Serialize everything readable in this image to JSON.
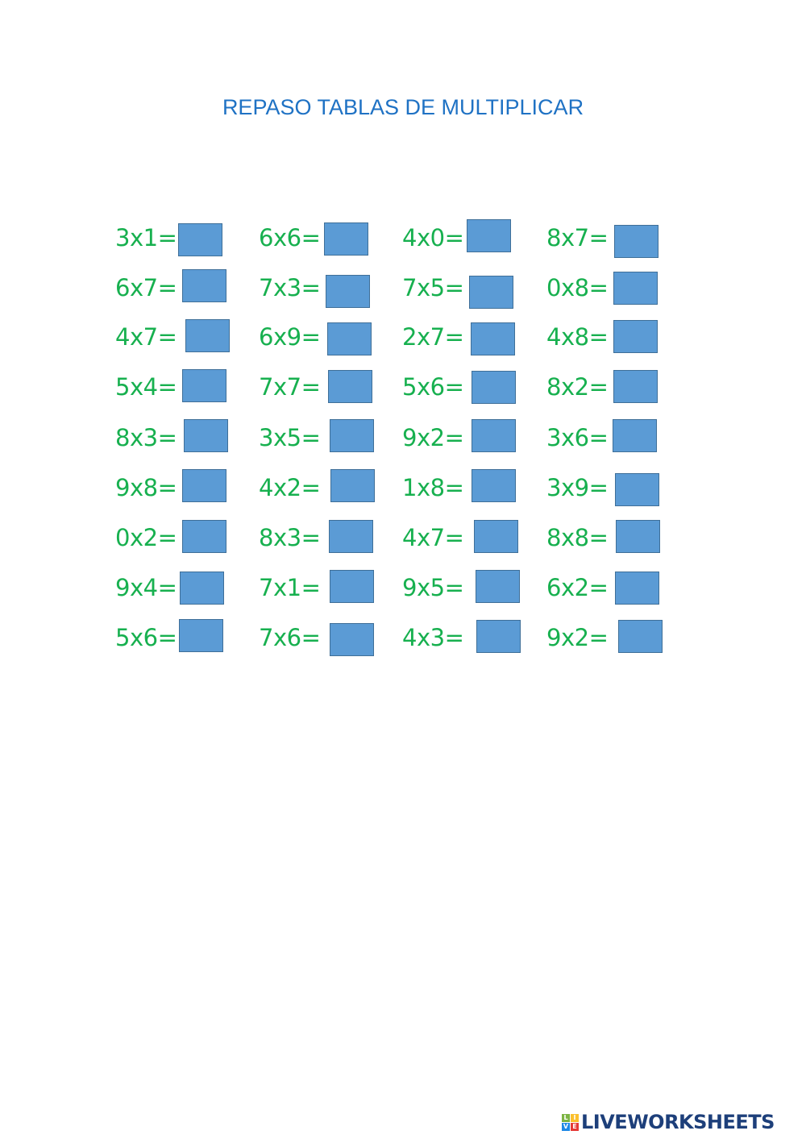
{
  "title": "REPASO TABLAS DE MULTIPLICAR",
  "rows": [
    [
      "3x1=",
      "6x6=",
      "4x0=",
      "8x7="
    ],
    [
      "6x7=",
      "7x3=",
      "7x5=",
      "0x8="
    ],
    [
      "4x7=",
      "6x9=",
      "2x7=",
      "4x8="
    ],
    [
      "5x4=",
      "7x7=",
      "5x6=",
      "8x2="
    ],
    [
      "8x3=",
      "3x5=",
      "9x2=",
      "3x6="
    ],
    [
      "9x8=",
      "4x2=",
      "1x8=",
      "3x9="
    ],
    [
      "0x2=",
      "8x3=",
      "4x7=",
      "8x8="
    ],
    [
      "9x4=",
      "7x1=",
      "9x5=",
      "6x2="
    ],
    [
      "5x6=",
      "7x6=",
      "4x3=",
      "9x2="
    ]
  ],
  "answers": [
    [
      "",
      "",
      "",
      ""
    ],
    [
      "",
      "",
      "",
      ""
    ],
    [
      "",
      "",
      "",
      ""
    ],
    [
      "",
      "",
      "",
      ""
    ],
    [
      "",
      "",
      "",
      ""
    ],
    [
      "",
      "",
      "",
      ""
    ],
    [
      "",
      "",
      "",
      ""
    ],
    [
      "",
      "",
      "",
      ""
    ],
    [
      "",
      "",
      "",
      ""
    ]
  ],
  "colors": {
    "title": "#1f72c4",
    "expression": "#17b04f",
    "answer_box": "#5b9bd5"
  },
  "logo": {
    "text": "LIVEWORKSHEETS",
    "mark_letters": [
      "L",
      "I",
      "V",
      "E"
    ]
  }
}
